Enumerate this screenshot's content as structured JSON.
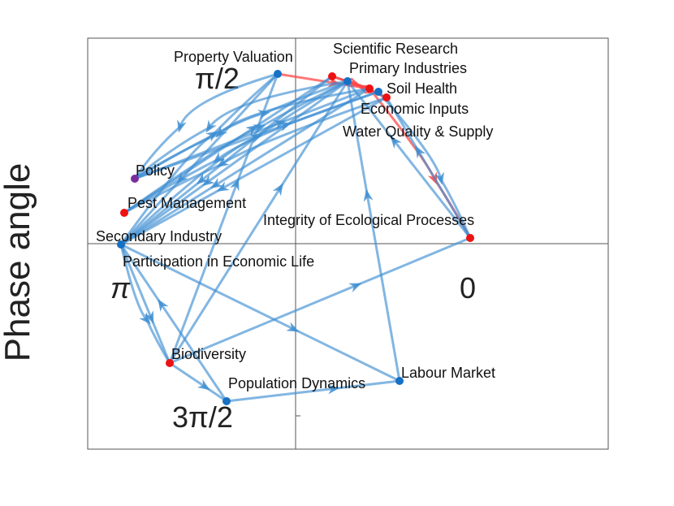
{
  "figure": {
    "ylabel": "Phase angle",
    "angle_labels": {
      "top": "π/2",
      "left": "π",
      "bottom": "3π/2",
      "right": "0"
    }
  },
  "colors": {
    "edge_blue": "#3f8fd2",
    "edge_red": "#ff4a4a",
    "node_blue": "#1670c4",
    "node_red": "#ee1111",
    "node_purple": "#7a2e9e",
    "frame": "#555555"
  },
  "nodes": [
    {
      "id": "property_valuation",
      "label": "Property Valuation",
      "color": "blue"
    },
    {
      "id": "scientific_research",
      "label": "Scientific Research",
      "color": "red"
    },
    {
      "id": "primary_industries",
      "label": "Primary Industries",
      "color": "blue"
    },
    {
      "id": "soil_health",
      "label": "Soil Health",
      "color": "red"
    },
    {
      "id": "economic_inputs",
      "label": "Economic Inputs",
      "color": "red"
    },
    {
      "id": "water_quality",
      "label": "Water Quality & Supply",
      "color": "blue"
    },
    {
      "id": "policy",
      "label": "Policy",
      "color": "purple"
    },
    {
      "id": "pest_management",
      "label": "Pest Management",
      "color": "red"
    },
    {
      "id": "integrity",
      "label": "Integrity of Ecological Processes",
      "color": "red"
    },
    {
      "id": "secondary_industry",
      "label": "Secondary Industry",
      "color": "blue"
    },
    {
      "id": "participation",
      "label": "Participation in Economic Life",
      "color": "blue"
    },
    {
      "id": "biodiversity",
      "label": "Biodiversity",
      "color": "red"
    },
    {
      "id": "labour_market",
      "label": "Labour Market",
      "color": "blue"
    },
    {
      "id": "population_dynamics",
      "label": "Population Dynamics",
      "color": "blue"
    }
  ],
  "edges": [
    {
      "from": "soil_health",
      "to": "scientific_research",
      "color": "red"
    },
    {
      "from": "soil_health",
      "to": "integrity",
      "color": "red"
    },
    {
      "from": "economic_inputs",
      "to": "primary_industries",
      "color": "red"
    },
    {
      "from": "property_valuation",
      "to": "soil_health",
      "color": "red"
    },
    {
      "from": "primary_industries",
      "to": "economic_inputs",
      "color": "red"
    },
    {
      "from": "scientific_research",
      "to": "soil_health",
      "color": "red"
    },
    {
      "from": "property_valuation",
      "to": "policy",
      "color": "blue"
    },
    {
      "from": "primary_industries",
      "to": "policy",
      "color": "blue"
    },
    {
      "from": "soil_health",
      "to": "policy",
      "color": "blue"
    },
    {
      "from": "water_quality",
      "to": "pest_management",
      "color": "blue"
    },
    {
      "from": "economic_inputs",
      "to": "pest_management",
      "color": "blue"
    },
    {
      "from": "property_valuation",
      "to": "secondary_industry",
      "color": "blue"
    },
    {
      "from": "primary_industries",
      "to": "secondary_industry",
      "color": "blue"
    },
    {
      "from": "scientific_research",
      "to": "secondary_industry",
      "color": "blue"
    },
    {
      "from": "soil_health",
      "to": "secondary_industry",
      "color": "blue"
    },
    {
      "from": "economic_inputs",
      "to": "secondary_industry",
      "color": "blue"
    },
    {
      "from": "secondary_industry",
      "to": "property_valuation",
      "color": "blue"
    },
    {
      "from": "secondary_industry",
      "to": "primary_industries",
      "color": "blue"
    },
    {
      "from": "pest_management",
      "to": "primary_industries",
      "color": "blue"
    },
    {
      "from": "policy",
      "to": "primary_industries",
      "color": "blue"
    },
    {
      "from": "policy",
      "to": "soil_health",
      "color": "blue"
    },
    {
      "from": "secondary_industry",
      "to": "labour_market",
      "color": "blue"
    },
    {
      "from": "secondary_industry",
      "to": "biodiversity",
      "color": "blue"
    },
    {
      "from": "participation",
      "to": "biodiversity",
      "color": "blue"
    },
    {
      "from": "biodiversity",
      "to": "property_valuation",
      "color": "blue"
    },
    {
      "from": "biodiversity",
      "to": "primary_industries",
      "color": "blue"
    },
    {
      "from": "biodiversity",
      "to": "integrity",
      "color": "blue"
    },
    {
      "from": "biodiversity",
      "to": "population_dynamics",
      "color": "blue"
    },
    {
      "from": "population_dynamics",
      "to": "labour_market",
      "color": "blue"
    },
    {
      "from": "labour_market",
      "to": "primary_industries",
      "color": "blue"
    },
    {
      "from": "population_dynamics",
      "to": "secondary_industry",
      "color": "blue"
    },
    {
      "from": "integrity",
      "to": "economic_inputs",
      "color": "blue"
    },
    {
      "from": "integrity",
      "to": "primary_industries",
      "color": "blue"
    },
    {
      "from": "water_quality",
      "to": "integrity",
      "color": "blue"
    },
    {
      "from": "pest_management",
      "to": "scientific_research",
      "color": "blue"
    },
    {
      "from": "policy",
      "to": "water_quality",
      "color": "blue"
    }
  ]
}
